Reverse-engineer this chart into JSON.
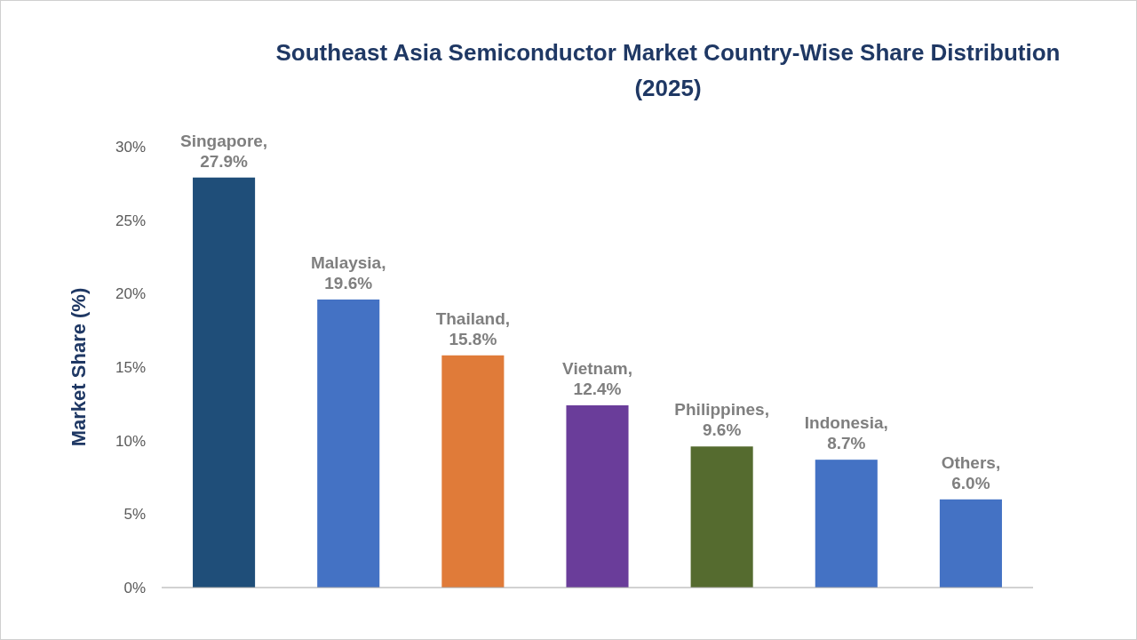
{
  "chart_data": {
    "type": "bar",
    "title": "Southeast Asia Semiconductor Market Country-Wise Share Distribution (2025)",
    "ylabel": "Market Share (%)",
    "categories": [
      null,
      null,
      null,
      null,
      null,
      null,
      null
    ],
    "values": [
      27.9,
      19.6,
      15.8,
      12.4,
      9.6,
      8.7,
      6.0
    ],
    "colors": [
      "#1f4e79",
      "#4472c4",
      "#e07b39",
      "#6a3d9a",
      "#556b2f",
      "#4472c4",
      "#4472c4"
    ],
    "value_labels": [
      "Singapore, 27.9%",
      "Malaysia, 19.6%",
      "Thailand, 15.8%",
      "Vietnam, 12.4%",
      "Philippines, 9.6%",
      "Indonesia, 8.7%",
      "Others, 6.0%"
    ],
    "ylim": [
      0,
      30
    ],
    "yticks": [
      {
        "value": 0,
        "label": "0%"
      },
      {
        "value": 5,
        "label": "5%"
      },
      {
        "value": 10,
        "label": "10%"
      },
      {
        "value": 15,
        "label": "15%"
      },
      {
        "value": 20,
        "label": "20%"
      },
      {
        "value": 25,
        "label": "25%"
      },
      {
        "value": 30,
        "label": "30%"
      }
    ],
    "tick_labels": "y",
    "grid": false
  }
}
